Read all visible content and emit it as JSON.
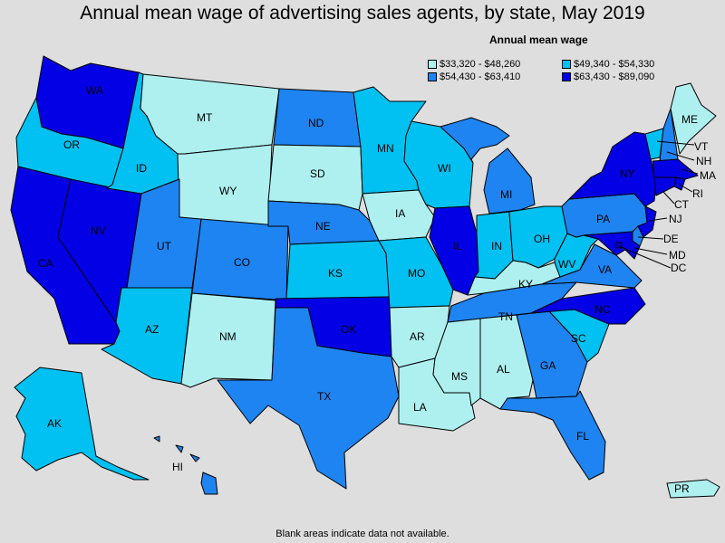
{
  "title": "Annual mean wage of advertising sales agents, by state, May 2019",
  "legend": {
    "title": "Annual mean wage",
    "items": [
      {
        "label": "$33,320 - $48,260",
        "color": "#aef0ef"
      },
      {
        "label": "$49,340 - $54,330",
        "color": "#00c1f1"
      },
      {
        "label": "$54,430 - $63,410",
        "color": "#1e84f2"
      },
      {
        "label": "$63,430 - $89,090",
        "color": "#0300e5"
      }
    ]
  },
  "footnote": "Blank areas indicate data not available.",
  "states": [
    {
      "abbr": "WA",
      "class": 3
    },
    {
      "abbr": "OR",
      "class": 1
    },
    {
      "abbr": "CA",
      "class": 3
    },
    {
      "abbr": "NV",
      "class": 3
    },
    {
      "abbr": "ID",
      "class": 1
    },
    {
      "abbr": "MT",
      "class": 0
    },
    {
      "abbr": "WY",
      "class": 0
    },
    {
      "abbr": "UT",
      "class": 2
    },
    {
      "abbr": "AZ",
      "class": 1
    },
    {
      "abbr": "CO",
      "class": 2
    },
    {
      "abbr": "NM",
      "class": 0
    },
    {
      "abbr": "ND",
      "class": 2
    },
    {
      "abbr": "SD",
      "class": 0
    },
    {
      "abbr": "NE",
      "class": 2
    },
    {
      "abbr": "KS",
      "class": 1
    },
    {
      "abbr": "OK",
      "class": 3
    },
    {
      "abbr": "TX",
      "class": 2
    },
    {
      "abbr": "MN",
      "class": 1
    },
    {
      "abbr": "IA",
      "class": 0
    },
    {
      "abbr": "MO",
      "class": 1
    },
    {
      "abbr": "AR",
      "class": 0
    },
    {
      "abbr": "LA",
      "class": 0
    },
    {
      "abbr": "WI",
      "class": 1
    },
    {
      "abbr": "IL",
      "class": 3
    },
    {
      "abbr": "MI",
      "class": 2
    },
    {
      "abbr": "IN",
      "class": 1
    },
    {
      "abbr": "OH",
      "class": 1
    },
    {
      "abbr": "KY",
      "class": 0
    },
    {
      "abbr": "TN",
      "class": 2
    },
    {
      "abbr": "MS",
      "class": 0
    },
    {
      "abbr": "AL",
      "class": 0
    },
    {
      "abbr": "GA",
      "class": 2
    },
    {
      "abbr": "FL",
      "class": 2
    },
    {
      "abbr": "SC",
      "class": 1
    },
    {
      "abbr": "NC",
      "class": 3
    },
    {
      "abbr": "VA",
      "class": 2
    },
    {
      "abbr": "WV",
      "class": 1
    },
    {
      "abbr": "PA",
      "class": 2
    },
    {
      "abbr": "NY",
      "class": 3
    },
    {
      "abbr": "VT",
      "class": 1
    },
    {
      "abbr": "NH",
      "class": 2
    },
    {
      "abbr": "ME",
      "class": 0
    },
    {
      "abbr": "MA",
      "class": 3
    },
    {
      "abbr": "RI",
      "class": 3
    },
    {
      "abbr": "CT",
      "class": 3
    },
    {
      "abbr": "NJ",
      "class": 3
    },
    {
      "abbr": "DE",
      "class": 2
    },
    {
      "abbr": "MD",
      "class": 3
    },
    {
      "abbr": "DC",
      "class": 3
    },
    {
      "abbr": "AK",
      "class": 1
    },
    {
      "abbr": "HI",
      "class": 2
    },
    {
      "abbr": "PR",
      "class": 0
    }
  ]
}
